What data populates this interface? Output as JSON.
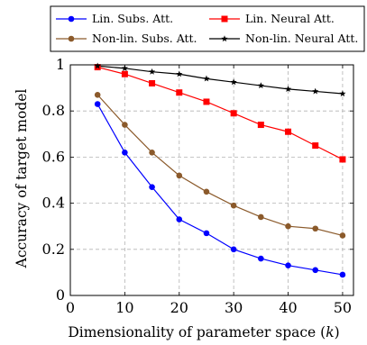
{
  "chart_data": {
    "type": "line",
    "xlabel": "Dimensionality of parameter space (k)",
    "xlabel_parts": [
      "Dimensionality of parameter space (",
      "k",
      ")"
    ],
    "ylabel": "Accuracy of target model",
    "xlim": [
      0,
      52
    ],
    "ylim": [
      0,
      1
    ],
    "xticks": [
      0,
      10,
      20,
      30,
      40,
      50
    ],
    "yticks": [
      0,
      0.2,
      0.4,
      0.6,
      0.8,
      1
    ],
    "xtick_labels": [
      "0",
      "10",
      "20",
      "30",
      "40",
      "50"
    ],
    "ytick_labels": [
      "0",
      "0.2",
      "0.4",
      "0.6",
      "0.8",
      "1"
    ],
    "grid": true,
    "legend_position": "top",
    "x": [
      5,
      10,
      15,
      20,
      25,
      30,
      35,
      40,
      45,
      50
    ],
    "series": [
      {
        "name": "Lin. Subs. Att.",
        "color": "#0000ff",
        "marker": "circle",
        "values": [
          0.83,
          0.62,
          0.47,
          0.33,
          0.27,
          0.2,
          0.16,
          0.13,
          0.11,
          0.09
        ]
      },
      {
        "name": "Lin. Neural Att.",
        "color": "#ff0000",
        "marker": "square",
        "values": [
          0.99,
          0.96,
          0.92,
          0.88,
          0.84,
          0.79,
          0.74,
          0.71,
          0.65,
          0.59
        ]
      },
      {
        "name": "Non-lin. Subs. Att.",
        "color": "#8b5a2b",
        "marker": "circle",
        "values": [
          0.87,
          0.74,
          0.62,
          0.52,
          0.45,
          0.39,
          0.34,
          0.3,
          0.29,
          0.26
        ]
      },
      {
        "name": "Non-lin. Neural Att.",
        "color": "#000000",
        "marker": "star",
        "values": [
          0.995,
          0.985,
          0.97,
          0.96,
          0.94,
          0.925,
          0.91,
          0.895,
          0.885,
          0.875
        ]
      }
    ]
  }
}
